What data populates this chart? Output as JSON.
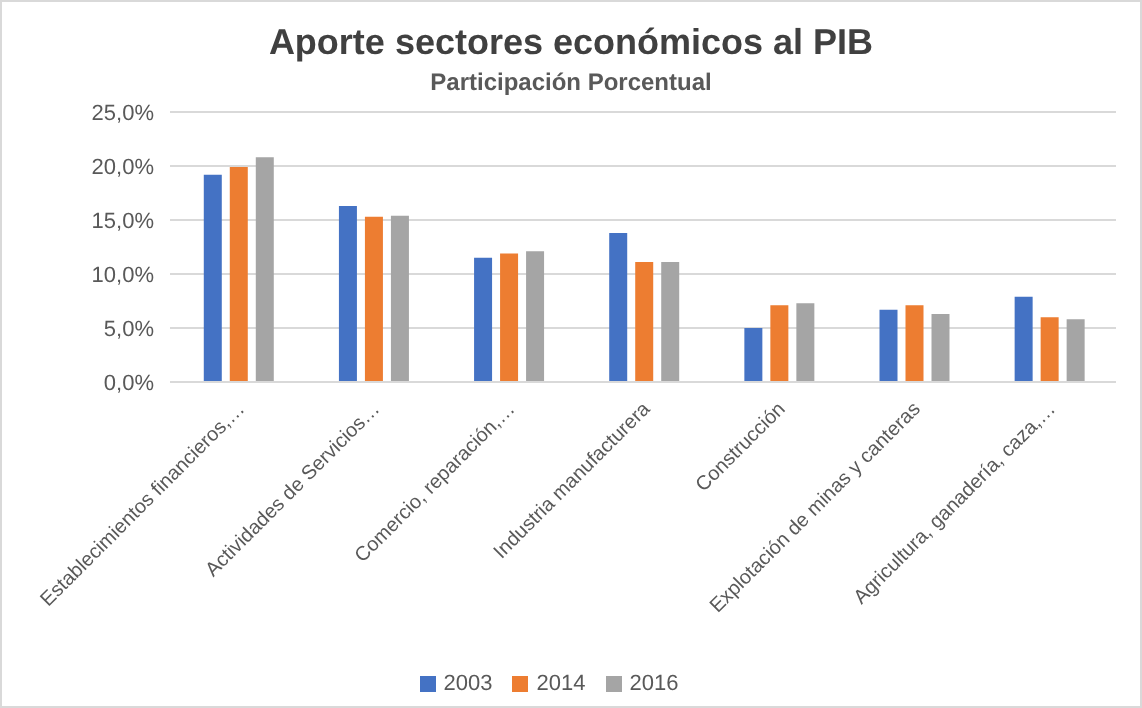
{
  "chart_data": {
    "type": "bar",
    "title": "Aporte sectores económicos al PIB",
    "subtitle": "Participación Porcentual",
    "categories": [
      "Establecimientos financieros,…",
      "Actividades de Servicios…",
      "Comercio, reparación,…",
      "Industria manufacturera",
      "Construcción",
      "Explotación de minas y canteras",
      "Agricultura, ganadería, caza,…"
    ],
    "series": [
      {
        "name": "2003",
        "color": "#4472c4",
        "values": [
          19.2,
          16.3,
          11.5,
          13.8,
          5.0,
          6.7,
          7.9
        ]
      },
      {
        "name": "2014",
        "color": "#ed7d31",
        "values": [
          19.9,
          15.3,
          11.9,
          11.1,
          7.1,
          7.1,
          6.0
        ]
      },
      {
        "name": "2016",
        "color": "#a5a5a5",
        "values": [
          20.8,
          15.4,
          12.1,
          11.1,
          7.3,
          6.3,
          5.8
        ]
      }
    ],
    "ylim": [
      0,
      25
    ],
    "yticks": [
      {
        "value": 0,
        "label": "0,0%"
      },
      {
        "value": 5,
        "label": "5,0%"
      },
      {
        "value": 10,
        "label": "10,0%"
      },
      {
        "value": 15,
        "label": "15,0%"
      },
      {
        "value": 20,
        "label": "20,0%"
      },
      {
        "value": 25,
        "label": "25,0%"
      }
    ],
    "grid": "y",
    "legend": "bottom"
  }
}
